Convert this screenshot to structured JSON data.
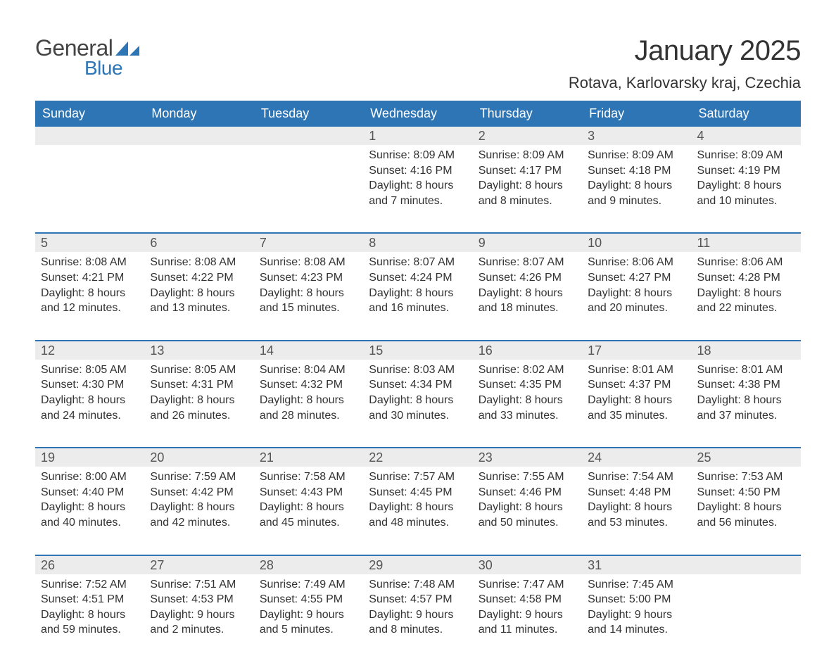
{
  "logo": {
    "text1": "General",
    "text2": "Blue",
    "shape_color": "#2e75b6"
  },
  "title": "January 2025",
  "location": "Rotava, Karlovarsky kraj, Czechia",
  "colors": {
    "header_bg": "#2e75b6",
    "header_text": "#ffffff",
    "daynum_bg": "#ececec",
    "week_border": "#2e75b6",
    "text": "#333333"
  },
  "day_names": [
    "Sunday",
    "Monday",
    "Tuesday",
    "Wednesday",
    "Thursday",
    "Friday",
    "Saturday"
  ],
  "weeks": [
    [
      {
        "empty": true
      },
      {
        "empty": true
      },
      {
        "empty": true
      },
      {
        "n": "1",
        "sunrise": "Sunrise: 8:09 AM",
        "sunset": "Sunset: 4:16 PM",
        "dl1": "Daylight: 8 hours",
        "dl2": "and 7 minutes."
      },
      {
        "n": "2",
        "sunrise": "Sunrise: 8:09 AM",
        "sunset": "Sunset: 4:17 PM",
        "dl1": "Daylight: 8 hours",
        "dl2": "and 8 minutes."
      },
      {
        "n": "3",
        "sunrise": "Sunrise: 8:09 AM",
        "sunset": "Sunset: 4:18 PM",
        "dl1": "Daylight: 8 hours",
        "dl2": "and 9 minutes."
      },
      {
        "n": "4",
        "sunrise": "Sunrise: 8:09 AM",
        "sunset": "Sunset: 4:19 PM",
        "dl1": "Daylight: 8 hours",
        "dl2": "and 10 minutes."
      }
    ],
    [
      {
        "n": "5",
        "sunrise": "Sunrise: 8:08 AM",
        "sunset": "Sunset: 4:21 PM",
        "dl1": "Daylight: 8 hours",
        "dl2": "and 12 minutes."
      },
      {
        "n": "6",
        "sunrise": "Sunrise: 8:08 AM",
        "sunset": "Sunset: 4:22 PM",
        "dl1": "Daylight: 8 hours",
        "dl2": "and 13 minutes."
      },
      {
        "n": "7",
        "sunrise": "Sunrise: 8:08 AM",
        "sunset": "Sunset: 4:23 PM",
        "dl1": "Daylight: 8 hours",
        "dl2": "and 15 minutes."
      },
      {
        "n": "8",
        "sunrise": "Sunrise: 8:07 AM",
        "sunset": "Sunset: 4:24 PM",
        "dl1": "Daylight: 8 hours",
        "dl2": "and 16 minutes."
      },
      {
        "n": "9",
        "sunrise": "Sunrise: 8:07 AM",
        "sunset": "Sunset: 4:26 PM",
        "dl1": "Daylight: 8 hours",
        "dl2": "and 18 minutes."
      },
      {
        "n": "10",
        "sunrise": "Sunrise: 8:06 AM",
        "sunset": "Sunset: 4:27 PM",
        "dl1": "Daylight: 8 hours",
        "dl2": "and 20 minutes."
      },
      {
        "n": "11",
        "sunrise": "Sunrise: 8:06 AM",
        "sunset": "Sunset: 4:28 PM",
        "dl1": "Daylight: 8 hours",
        "dl2": "and 22 minutes."
      }
    ],
    [
      {
        "n": "12",
        "sunrise": "Sunrise: 8:05 AM",
        "sunset": "Sunset: 4:30 PM",
        "dl1": "Daylight: 8 hours",
        "dl2": "and 24 minutes."
      },
      {
        "n": "13",
        "sunrise": "Sunrise: 8:05 AM",
        "sunset": "Sunset: 4:31 PM",
        "dl1": "Daylight: 8 hours",
        "dl2": "and 26 minutes."
      },
      {
        "n": "14",
        "sunrise": "Sunrise: 8:04 AM",
        "sunset": "Sunset: 4:32 PM",
        "dl1": "Daylight: 8 hours",
        "dl2": "and 28 minutes."
      },
      {
        "n": "15",
        "sunrise": "Sunrise: 8:03 AM",
        "sunset": "Sunset: 4:34 PM",
        "dl1": "Daylight: 8 hours",
        "dl2": "and 30 minutes."
      },
      {
        "n": "16",
        "sunrise": "Sunrise: 8:02 AM",
        "sunset": "Sunset: 4:35 PM",
        "dl1": "Daylight: 8 hours",
        "dl2": "and 33 minutes."
      },
      {
        "n": "17",
        "sunrise": "Sunrise: 8:01 AM",
        "sunset": "Sunset: 4:37 PM",
        "dl1": "Daylight: 8 hours",
        "dl2": "and 35 minutes."
      },
      {
        "n": "18",
        "sunrise": "Sunrise: 8:01 AM",
        "sunset": "Sunset: 4:38 PM",
        "dl1": "Daylight: 8 hours",
        "dl2": "and 37 minutes."
      }
    ],
    [
      {
        "n": "19",
        "sunrise": "Sunrise: 8:00 AM",
        "sunset": "Sunset: 4:40 PM",
        "dl1": "Daylight: 8 hours",
        "dl2": "and 40 minutes."
      },
      {
        "n": "20",
        "sunrise": "Sunrise: 7:59 AM",
        "sunset": "Sunset: 4:42 PM",
        "dl1": "Daylight: 8 hours",
        "dl2": "and 42 minutes."
      },
      {
        "n": "21",
        "sunrise": "Sunrise: 7:58 AM",
        "sunset": "Sunset: 4:43 PM",
        "dl1": "Daylight: 8 hours",
        "dl2": "and 45 minutes."
      },
      {
        "n": "22",
        "sunrise": "Sunrise: 7:57 AM",
        "sunset": "Sunset: 4:45 PM",
        "dl1": "Daylight: 8 hours",
        "dl2": "and 48 minutes."
      },
      {
        "n": "23",
        "sunrise": "Sunrise: 7:55 AM",
        "sunset": "Sunset: 4:46 PM",
        "dl1": "Daylight: 8 hours",
        "dl2": "and 50 minutes."
      },
      {
        "n": "24",
        "sunrise": "Sunrise: 7:54 AM",
        "sunset": "Sunset: 4:48 PM",
        "dl1": "Daylight: 8 hours",
        "dl2": "and 53 minutes."
      },
      {
        "n": "25",
        "sunrise": "Sunrise: 7:53 AM",
        "sunset": "Sunset: 4:50 PM",
        "dl1": "Daylight: 8 hours",
        "dl2": "and 56 minutes."
      }
    ],
    [
      {
        "n": "26",
        "sunrise": "Sunrise: 7:52 AM",
        "sunset": "Sunset: 4:51 PM",
        "dl1": "Daylight: 8 hours",
        "dl2": "and 59 minutes."
      },
      {
        "n": "27",
        "sunrise": "Sunrise: 7:51 AM",
        "sunset": "Sunset: 4:53 PM",
        "dl1": "Daylight: 9 hours",
        "dl2": "and 2 minutes."
      },
      {
        "n": "28",
        "sunrise": "Sunrise: 7:49 AM",
        "sunset": "Sunset: 4:55 PM",
        "dl1": "Daylight: 9 hours",
        "dl2": "and 5 minutes."
      },
      {
        "n": "29",
        "sunrise": "Sunrise: 7:48 AM",
        "sunset": "Sunset: 4:57 PM",
        "dl1": "Daylight: 9 hours",
        "dl2": "and 8 minutes."
      },
      {
        "n": "30",
        "sunrise": "Sunrise: 7:47 AM",
        "sunset": "Sunset: 4:58 PM",
        "dl1": "Daylight: 9 hours",
        "dl2": "and 11 minutes."
      },
      {
        "n": "31",
        "sunrise": "Sunrise: 7:45 AM",
        "sunset": "Sunset: 5:00 PM",
        "dl1": "Daylight: 9 hours",
        "dl2": "and 14 minutes."
      },
      {
        "empty": true
      }
    ]
  ]
}
